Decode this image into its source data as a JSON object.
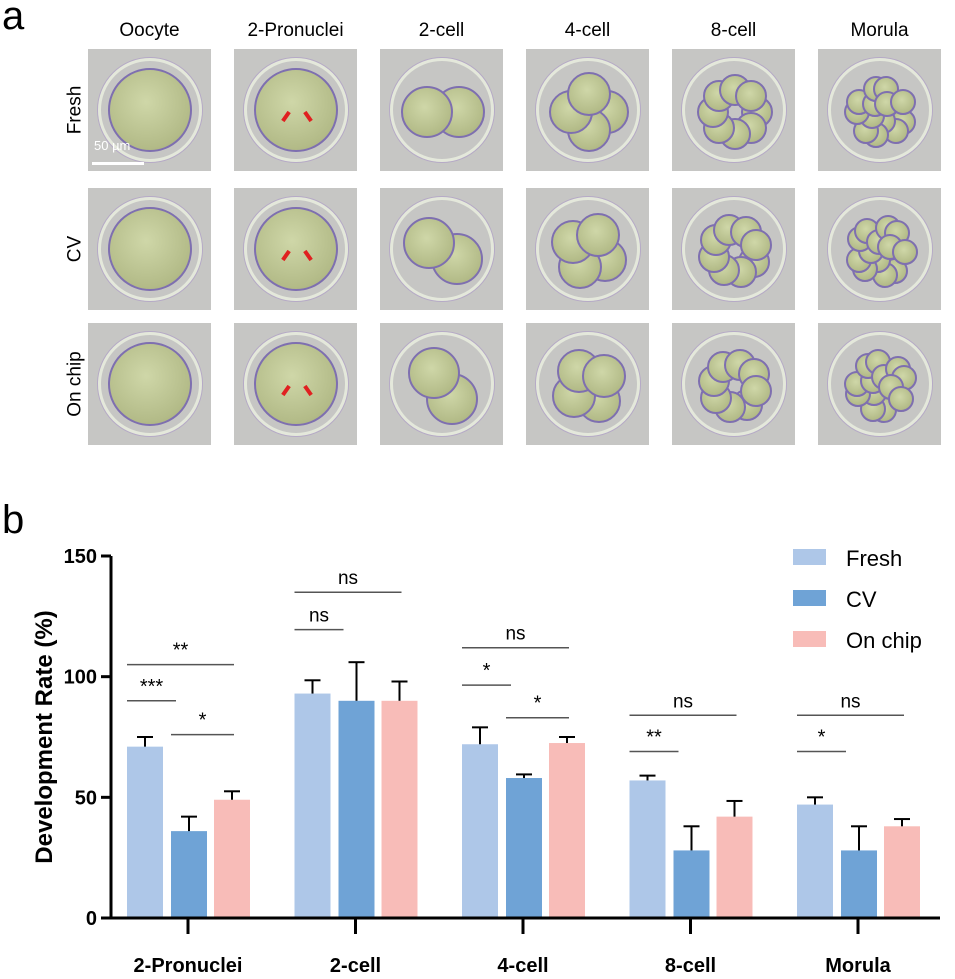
{
  "panel_a": {
    "letter": "a",
    "columns": [
      "Oocyte",
      "2-Pronuclei",
      "2-cell",
      "4-cell",
      "8-cell",
      "Morula"
    ],
    "rows": [
      "Fresh",
      "CV",
      "On chip"
    ],
    "scale_bar": "50 µm",
    "arrow_color": "#e02020"
  },
  "panel_b": {
    "letter": "b"
  },
  "chart_data": {
    "type": "bar",
    "title": "",
    "xlabel": "",
    "ylabel": "Development Rate (%)",
    "ylim": [
      0,
      150
    ],
    "yticks": [
      0,
      50,
      100,
      150
    ],
    "grid": false,
    "legend_position": "top-right",
    "categories": [
      "2-Pronuclei",
      "2-cell",
      "4-cell",
      "8-cell",
      "Morula"
    ],
    "series": [
      {
        "name": "Fresh",
        "color": "#aec7e8",
        "values": [
          71,
          93,
          72,
          57,
          47
        ],
        "error_upper": [
          75,
          98.5,
          79,
          59,
          50
        ]
      },
      {
        "name": "CV",
        "color": "#6fa3d6",
        "values": [
          36,
          90,
          58,
          28,
          28
        ],
        "error_upper": [
          42,
          106,
          59.5,
          38,
          38
        ]
      },
      {
        "name": "On chip",
        "color": "#f8bcb8",
        "values": [
          49,
          90,
          72.5,
          42,
          38
        ],
        "error_upper": [
          52.5,
          98,
          75,
          48.5,
          41
        ]
      }
    ],
    "significance": [
      {
        "category": 0,
        "from": 0,
        "to": 2,
        "y": 105,
        "label": "**"
      },
      {
        "category": 0,
        "from": 0,
        "to": 1,
        "y": 90,
        "label": "***"
      },
      {
        "category": 0,
        "from": 1,
        "to": 2,
        "y": 76,
        "label": "*"
      },
      {
        "category": 1,
        "from": 0,
        "to": 2,
        "y": 135,
        "label": "ns"
      },
      {
        "category": 1,
        "from": 0,
        "to": 1,
        "y": 119.5,
        "label": "ns"
      },
      {
        "category": 2,
        "from": 0,
        "to": 2,
        "y": 112,
        "label": "ns"
      },
      {
        "category": 2,
        "from": 0,
        "to": 1,
        "y": 96.5,
        "label": "*"
      },
      {
        "category": 2,
        "from": 1,
        "to": 2,
        "y": 83,
        "label": "*"
      },
      {
        "category": 3,
        "from": 0,
        "to": 2,
        "y": 84,
        "label": "ns"
      },
      {
        "category": 3,
        "from": 0,
        "to": 1,
        "y": 69,
        "label": "**"
      },
      {
        "category": 4,
        "from": 0,
        "to": 2,
        "y": 84,
        "label": "ns"
      },
      {
        "category": 4,
        "from": 0,
        "to": 1,
        "y": 69,
        "label": "*"
      }
    ]
  }
}
